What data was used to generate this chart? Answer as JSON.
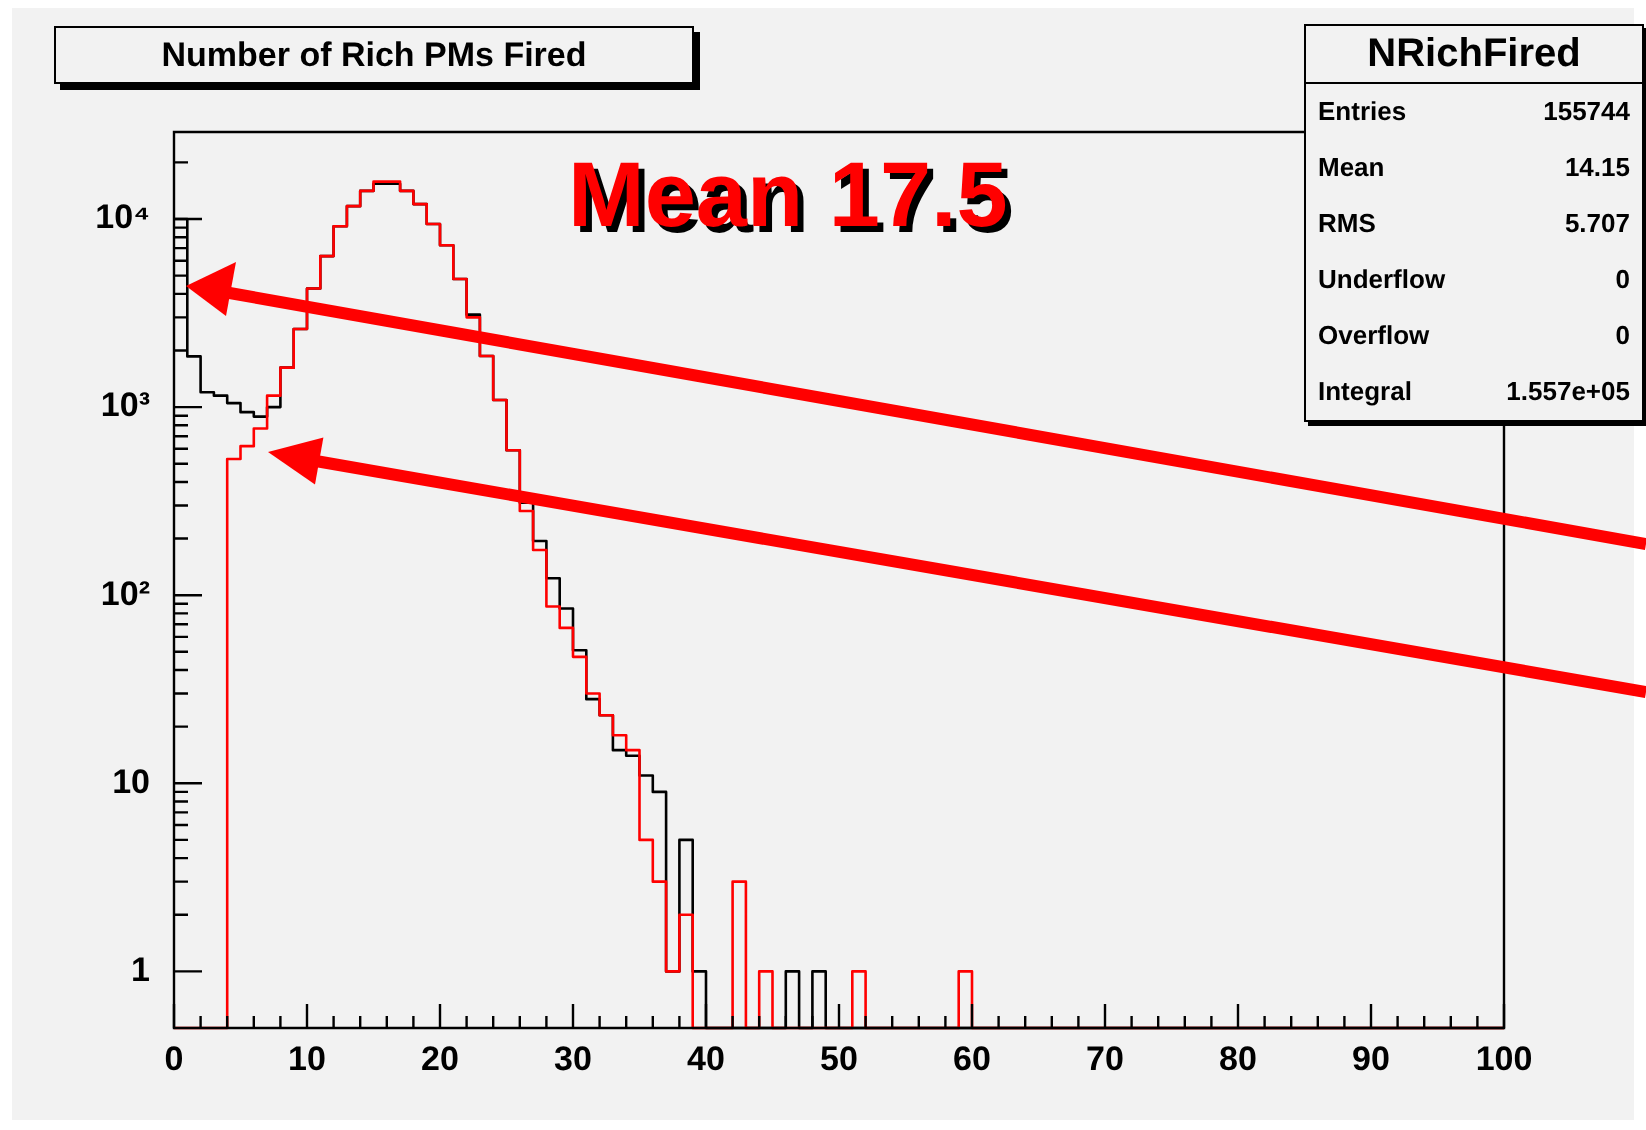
{
  "chart_data": {
    "type": "histogram",
    "title": "Number of Rich PMs Fired",
    "annotations": [
      "Mean 17.5",
      "NRichFired",
      "Entries 155744",
      "Mean 14.15",
      "RMS 5.707",
      "Underflow 0",
      "Overflow 0",
      "Integral 1.557e+05"
    ],
    "bins": [
      0,
      1,
      2,
      3,
      4,
      5,
      6,
      7,
      8,
      9,
      10,
      11,
      12,
      13,
      14,
      15,
      16,
      17,
      18,
      19,
      20,
      21,
      22,
      23,
      24,
      25,
      26,
      27,
      28,
      29,
      30,
      31,
      32,
      33,
      34,
      35,
      36,
      37,
      38,
      39,
      40,
      41,
      42,
      43,
      44,
      45,
      46,
      47,
      48,
      49,
      50,
      51,
      52,
      53,
      54,
      55,
      56,
      57,
      58,
      59,
      60,
      61,
      62,
      63,
      64,
      65,
      66,
      67,
      68,
      69,
      70,
      71,
      72,
      73,
      74,
      75,
      76,
      77,
      78,
      79,
      80,
      81,
      82,
      83,
      84,
      85,
      86,
      87,
      88,
      89,
      90,
      91,
      92,
      93,
      94,
      95,
      96,
      97,
      98,
      99,
      100
    ],
    "series": [
      {
        "color": "#000000",
        "values": [
          10000,
          1860,
          1200,
          1150,
          1050,
          940,
          890,
          1000,
          1620,
          2600,
          4270,
          6350,
          9150,
          11700,
          14100,
          15400,
          15400,
          14100,
          12000,
          9400,
          7250,
          4800,
          3100,
          1870,
          1090,
          590,
          310,
          194,
          123,
          85,
          51,
          28,
          23,
          15,
          14,
          11,
          9,
          1,
          5,
          1,
          null,
          null,
          null,
          null,
          null,
          null,
          1,
          null,
          1,
          null,
          null,
          null,
          null,
          null,
          null,
          null,
          null,
          null,
          null,
          null,
          null,
          null,
          null,
          null,
          null,
          null,
          null,
          null,
          null,
          null,
          null,
          null,
          null,
          null,
          null,
          null,
          null,
          null,
          null,
          null,
          null,
          null,
          null,
          null,
          null,
          null,
          null,
          null,
          null,
          null,
          null,
          null,
          null,
          null,
          null,
          null,
          null,
          null,
          null,
          null
        ]
      },
      {
        "color": "#ff0000",
        "values": [
          null,
          null,
          null,
          null,
          530,
          620,
          770,
          1150,
          1620,
          2600,
          4270,
          6350,
          9150,
          11700,
          14100,
          15800,
          15800,
          14100,
          12000,
          9400,
          7250,
          4800,
          3000,
          1870,
          1090,
          590,
          280,
          174,
          87,
          67,
          47,
          30,
          23,
          18,
          15,
          5,
          3,
          1,
          2,
          null,
          null,
          null,
          3,
          null,
          1,
          null,
          null,
          null,
          null,
          null,
          null,
          1,
          null,
          null,
          null,
          null,
          null,
          null,
          null,
          1,
          null,
          null,
          null,
          null,
          null,
          null,
          null,
          null,
          null,
          null,
          null,
          null,
          null,
          null,
          null,
          null,
          null,
          null,
          null,
          null,
          null,
          null,
          null,
          null,
          null,
          null,
          null,
          null,
          null,
          null,
          null,
          null,
          null,
          null,
          null,
          null,
          null,
          null,
          null,
          null
        ]
      }
    ],
    "log": true,
    "grid": false,
    "legend": false,
    "xlim": [
      0,
      100
    ],
    "xticks": [
      0,
      {
        "value": 2,
        "label": null
      },
      {
        "value": 4,
        "label": null
      },
      {
        "value": 6,
        "label": null
      },
      {
        "value": 8,
        "label": null
      },
      10,
      {
        "value": 12,
        "label": null
      },
      {
        "value": 14,
        "label": null
      },
      {
        "value": 16,
        "label": null
      },
      {
        "value": 18,
        "label": null
      },
      20,
      {
        "value": 22,
        "label": null
      },
      {
        "value": 24,
        "label": null
      },
      {
        "value": 26,
        "label": null
      },
      {
        "value": 28,
        "label": null
      },
      30,
      {
        "value": 32,
        "label": null
      },
      {
        "value": 34,
        "label": null
      },
      {
        "value": 36,
        "label": null
      },
      {
        "value": 38,
        "label": null
      },
      40,
      {
        "value": 42,
        "label": null
      },
      {
        "value": 44,
        "label": null
      },
      {
        "value": 46,
        "label": null
      },
      {
        "value": 48,
        "label": null
      },
      50,
      {
        "value": 52,
        "label": null
      },
      {
        "value": 54,
        "label": null
      },
      {
        "value": 56,
        "label": null
      },
      {
        "value": 58,
        "label": null
      },
      60,
      {
        "value": 62,
        "label": null
      },
      {
        "value": 64,
        "label": null
      },
      {
        "value": 66,
        "label": null
      },
      {
        "value": 68,
        "label": null
      },
      70,
      {
        "value": 72,
        "label": null
      },
      {
        "value": 74,
        "label": null
      },
      {
        "value": 76,
        "label": null
      },
      {
        "value": 78,
        "label": null
      },
      80,
      {
        "value": 82,
        "label": null
      },
      {
        "value": 84,
        "label": null
      },
      {
        "value": 86,
        "label": null
      },
      {
        "value": 88,
        "label": null
      },
      90,
      {
        "value": 92,
        "label": null
      },
      {
        "value": 94,
        "label": null
      },
      {
        "value": 96,
        "label": null
      },
      {
        "value": 98,
        "label": null
      },
      100
    ],
    "ylim": [
      0.5,
      29000
    ],
    "yticks": [
      1,
      {
        "value": 2,
        "label": null
      },
      {
        "value": 3,
        "label": null
      },
      {
        "value": 4,
        "label": null
      },
      {
        "value": 5,
        "label": null
      },
      {
        "value": 6,
        "label": null
      },
      {
        "value": 7,
        "label": null
      },
      {
        "value": 8,
        "label": null
      },
      {
        "value": 9,
        "label": null
      },
      10,
      {
        "value": 20,
        "label": null
      },
      {
        "value": 30,
        "label": null
      },
      {
        "value": 40,
        "label": null
      },
      {
        "value": 50,
        "label": null
      },
      {
        "value": 60,
        "label": null
      },
      {
        "value": 70,
        "label": null
      },
      {
        "value": 80,
        "label": null
      },
      {
        "value": 90,
        "label": null
      },
      {
        "value": 100,
        "label": "10²"
      },
      {
        "value": 200,
        "label": null
      },
      {
        "value": 300,
        "label": null
      },
      {
        "value": 400,
        "label": null
      },
      {
        "value": 500,
        "label": null
      },
      {
        "value": 600,
        "label": null
      },
      {
        "value": 700,
        "label": null
      },
      {
        "value": 800,
        "label": null
      },
      {
        "value": 900,
        "label": null
      },
      {
        "value": 1000,
        "label": "10³"
      },
      {
        "value": 2000,
        "label": null
      },
      {
        "value": 3000,
        "label": null
      },
      {
        "value": 4000,
        "label": null
      },
      {
        "value": 5000,
        "label": null
      },
      {
        "value": 6000,
        "label": null
      },
      {
        "value": 7000,
        "label": null
      },
      {
        "value": 8000,
        "label": null
      },
      {
        "value": 9000,
        "label": null
      },
      {
        "value": 10000,
        "label": "10⁴"
      },
      {
        "value": 20000,
        "label": null
      }
    ]
  }
}
